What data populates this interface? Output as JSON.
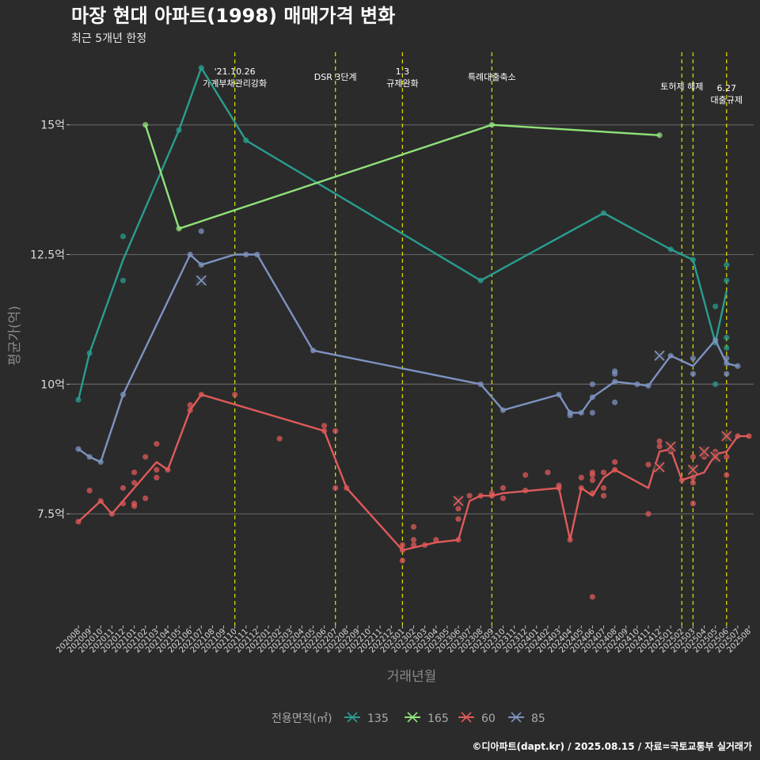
{
  "chart_data": {
    "type": "line",
    "title": "마장 현대 아파트(1998) 매매가격 변화",
    "subtitle": "최근 5개년 한정",
    "xlabel": "거래년월",
    "ylabel": "평균가(억)",
    "caption": "©디아파트(dapt.kr) / 2025.08.15 / 자료=국토교통부 실거래가",
    "legend_title": "전용면적(㎡)",
    "legend_position": "bottom",
    "grid": true,
    "ylim": [
      5.35,
      16.4
    ],
    "yticks": [
      7.5,
      10,
      12.5,
      15
    ],
    "ytick_labels": [
      "7.5억",
      "10억",
      "12.5억",
      "15억"
    ],
    "x_categories": [
      "202008",
      "202009",
      "202010",
      "202011",
      "202012",
      "202101",
      "202102",
      "202103",
      "202104",
      "202105",
      "202106",
      "202107",
      "202108",
      "202109",
      "202110",
      "202111",
      "202112",
      "202201",
      "202202",
      "202203",
      "202204",
      "202205",
      "202206",
      "202207",
      "202208",
      "202209",
      "202210",
      "202211",
      "202212",
      "202301",
      "202302",
      "202303",
      "202304",
      "202305",
      "202306",
      "202307",
      "202308",
      "202309",
      "202310",
      "202311",
      "202312",
      "202401",
      "202402",
      "202403",
      "202404",
      "202405",
      "202406",
      "202407",
      "202408",
      "202409",
      "202410",
      "202411",
      "202412",
      "202501",
      "202502",
      "202503",
      "202504",
      "202505",
      "202506",
      "202507",
      "202508"
    ],
    "events": [
      {
        "x": "202110",
        "lines": [
          "'21.10.26",
          "가계부채관리강화"
        ],
        "level": 0
      },
      {
        "x": "202207",
        "lines": [
          "DSR 3단계"
        ],
        "level": 2
      },
      {
        "x": "202301",
        "lines": [
          "1.3",
          "규제완화"
        ],
        "level": 0
      },
      {
        "x": "202309",
        "lines": [
          "특례대출축소"
        ],
        "level": 2
      },
      {
        "x": "202502",
        "lines": [
          "토허제 해제"
        ],
        "level": 1
      },
      {
        "x": "202503",
        "lines": [],
        "level": 1
      },
      {
        "x": "202506",
        "lines": [
          "6.27",
          "대출규제"
        ],
        "level": 3
      }
    ],
    "series": [
      {
        "name": "135",
        "color": "#2a9d8f",
        "line": [
          [
            "202008",
            9.7
          ],
          [
            "202009",
            10.6
          ],
          [
            "202012",
            12.4
          ],
          [
            "202105",
            14.9
          ],
          [
            "202107",
            16.1
          ],
          [
            "202111",
            14.7
          ],
          [
            "202308",
            12.0
          ],
          [
            "202407",
            13.3
          ],
          [
            "202501",
            12.6
          ],
          [
            "202503",
            12.4
          ],
          [
            "202505",
            10.8
          ],
          [
            "202506",
            11.8
          ]
        ],
        "points": [
          [
            "202008",
            9.7
          ],
          [
            "202009",
            10.6
          ],
          [
            "202012",
            12.85
          ],
          [
            "202012",
            12.0
          ],
          [
            "202105",
            14.9
          ],
          [
            "202107",
            16.1
          ],
          [
            "202111",
            14.7
          ],
          [
            "202308",
            12.0
          ],
          [
            "202407",
            13.3
          ],
          [
            "202501",
            12.6
          ],
          [
            "202503",
            12.4
          ],
          [
            "202505",
            11.5
          ],
          [
            "202505",
            10.0
          ],
          [
            "202505",
            10.8
          ],
          [
            "202506",
            12.3
          ],
          [
            "202506",
            12.0
          ],
          [
            "202506",
            10.9
          ],
          [
            "202506",
            10.7
          ]
        ],
        "cancelled": []
      },
      {
        "name": "165",
        "color": "#90e27a",
        "line": [
          [
            "202102",
            15.0
          ],
          [
            "202105",
            13.0
          ],
          [
            "202309",
            15.0
          ],
          [
            "202412",
            14.8
          ]
        ],
        "points": [
          [
            "202102",
            15.0
          ],
          [
            "202105",
            13.0
          ],
          [
            "202309",
            15.0
          ],
          [
            "202412",
            14.8
          ]
        ],
        "cancelled": []
      },
      {
        "name": "60",
        "color": "#e05a5a",
        "line": [
          [
            "202008",
            7.35
          ],
          [
            "202010",
            7.75
          ],
          [
            "202011",
            7.5
          ],
          [
            "202101",
            8.0
          ],
          [
            "202103",
            8.5
          ],
          [
            "202104",
            8.35
          ],
          [
            "202106",
            9.5
          ],
          [
            "202107",
            9.8
          ],
          [
            "202206",
            9.1
          ],
          [
            "202208",
            8.0
          ],
          [
            "202301",
            6.8
          ],
          [
            "202303",
            6.9
          ],
          [
            "202304",
            6.95
          ],
          [
            "202306",
            7.0
          ],
          [
            "202307",
            7.75
          ],
          [
            "202308",
            7.85
          ],
          [
            "202309",
            7.85
          ],
          [
            "202310",
            7.9
          ],
          [
            "202403",
            8.0
          ],
          [
            "202404",
            7.0
          ],
          [
            "202405",
            8.0
          ],
          [
            "202406",
            7.85
          ],
          [
            "202407",
            8.2
          ],
          [
            "202408",
            8.35
          ],
          [
            "202411",
            8.0
          ],
          [
            "202412",
            8.7
          ],
          [
            "202501",
            8.75
          ],
          [
            "202502",
            8.15
          ],
          [
            "202504",
            8.3
          ],
          [
            "202505",
            8.65
          ],
          [
            "202506",
            8.7
          ],
          [
            "202507",
            9.0
          ],
          [
            "202508",
            9.0
          ]
        ],
        "points": [
          [
            "202008",
            7.35
          ],
          [
            "202009",
            7.95
          ],
          [
            "202010",
            7.75
          ],
          [
            "202011",
            7.5
          ],
          [
            "202012",
            8.0
          ],
          [
            "202012",
            7.7
          ],
          [
            "202101",
            8.3
          ],
          [
            "202101",
            8.1
          ],
          [
            "202101",
            7.7
          ],
          [
            "202101",
            7.65
          ],
          [
            "202102",
            8.6
          ],
          [
            "202102",
            7.8
          ],
          [
            "202103",
            8.35
          ],
          [
            "202103",
            8.2
          ],
          [
            "202103",
            8.85
          ],
          [
            "202104",
            8.35
          ],
          [
            "202106",
            9.6
          ],
          [
            "202106",
            9.5
          ],
          [
            "202107",
            9.8
          ],
          [
            "202110",
            9.8
          ],
          [
            "202202",
            8.95
          ],
          [
            "202206",
            9.2
          ],
          [
            "202206",
            9.1
          ],
          [
            "202207",
            9.1
          ],
          [
            "202207",
            8.0
          ],
          [
            "202208",
            8.0
          ],
          [
            "202301",
            6.6
          ],
          [
            "202301",
            6.8
          ],
          [
            "202301",
            6.9
          ],
          [
            "202302",
            7.25
          ],
          [
            "202302",
            7.0
          ],
          [
            "202302",
            6.9
          ],
          [
            "202303",
            6.9
          ],
          [
            "202304",
            7.0
          ],
          [
            "202306",
            7.0
          ],
          [
            "202306",
            7.4
          ],
          [
            "202306",
            7.6
          ],
          [
            "202307",
            7.85
          ],
          [
            "202308",
            7.85
          ],
          [
            "202309",
            7.85
          ],
          [
            "202309",
            7.9
          ],
          [
            "202310",
            7.8
          ],
          [
            "202310",
            8.0
          ],
          [
            "202312",
            8.25
          ],
          [
            "202312",
            7.95
          ],
          [
            "202402",
            8.3
          ],
          [
            "202403",
            8.0
          ],
          [
            "202403",
            8.05
          ],
          [
            "202404",
            7.0
          ],
          [
            "202405",
            8.2
          ],
          [
            "202405",
            8.0
          ],
          [
            "202406",
            7.9
          ],
          [
            "202406",
            8.25
          ],
          [
            "202406",
            8.3
          ],
          [
            "202406",
            8.15
          ],
          [
            "202406",
            5.9
          ],
          [
            "202407",
            8.0
          ],
          [
            "202407",
            7.85
          ],
          [
            "202407",
            8.3
          ],
          [
            "202408",
            8.35
          ],
          [
            "202408",
            8.5
          ],
          [
            "202411",
            8.45
          ],
          [
            "202411",
            7.5
          ],
          [
            "202412",
            8.9
          ],
          [
            "202412",
            8.8
          ],
          [
            "202501",
            8.7
          ],
          [
            "202501",
            8.75
          ],
          [
            "202502",
            8.15
          ],
          [
            "202503",
            8.6
          ],
          [
            "202503",
            8.2
          ],
          [
            "202503",
            8.1
          ],
          [
            "202503",
            7.7
          ],
          [
            "202504",
            8.6
          ],
          [
            "202505",
            8.6
          ],
          [
            "202505",
            8.7
          ],
          [
            "202506",
            9.0
          ],
          [
            "202506",
            8.25
          ],
          [
            "202506",
            8.6
          ],
          [
            "202507",
            9.0
          ],
          [
            "202508",
            9.0
          ]
        ],
        "cancelled": [
          [
            "202306",
            7.75
          ],
          [
            "202412",
            8.4
          ],
          [
            "202501",
            8.8
          ],
          [
            "202503",
            8.35
          ],
          [
            "202504",
            8.7
          ],
          [
            "202505",
            8.6
          ],
          [
            "202506",
            9.0
          ]
        ]
      },
      {
        "name": "85",
        "color": "#7d93c0",
        "line": [
          [
            "202008",
            8.75
          ],
          [
            "202009",
            8.6
          ],
          [
            "202010",
            8.5
          ],
          [
            "202012",
            9.8
          ],
          [
            "202106",
            12.5
          ],
          [
            "202107",
            12.3
          ],
          [
            "202110",
            12.5
          ],
          [
            "202111",
            12.5
          ],
          [
            "202112",
            12.5
          ],
          [
            "202205",
            10.65
          ],
          [
            "202308",
            10.0
          ],
          [
            "202310",
            9.5
          ],
          [
            "202403",
            9.8
          ],
          [
            "202404",
            9.45
          ],
          [
            "202405",
            9.45
          ],
          [
            "202406",
            9.75
          ],
          [
            "202408",
            10.05
          ],
          [
            "202410",
            10.0
          ],
          [
            "202411",
            9.97
          ],
          [
            "202501",
            10.55
          ],
          [
            "202503",
            10.35
          ],
          [
            "202505",
            10.85
          ],
          [
            "202506",
            10.4
          ],
          [
            "202507",
            10.35
          ]
        ],
        "points": [
          [
            "202008",
            8.75
          ],
          [
            "202009",
            8.6
          ],
          [
            "202010",
            8.5
          ],
          [
            "202012",
            9.8
          ],
          [
            "202106",
            12.5
          ],
          [
            "202107",
            12.95
          ],
          [
            "202107",
            12.3
          ],
          [
            "202111",
            12.5
          ],
          [
            "202112",
            12.5
          ],
          [
            "202205",
            10.65
          ],
          [
            "202308",
            10.0
          ],
          [
            "202310",
            9.5
          ],
          [
            "202403",
            9.8
          ],
          [
            "202404",
            9.45
          ],
          [
            "202404",
            9.4
          ],
          [
            "202405",
            9.45
          ],
          [
            "202406",
            10.0
          ],
          [
            "202406",
            9.45
          ],
          [
            "202406",
            9.75
          ],
          [
            "202408",
            10.25
          ],
          [
            "202408",
            10.2
          ],
          [
            "202408",
            9.65
          ],
          [
            "202408",
            10.05
          ],
          [
            "202410",
            10.0
          ],
          [
            "202411",
            9.97
          ],
          [
            "202501",
            10.55
          ],
          [
            "202503",
            10.5
          ],
          [
            "202503",
            10.2
          ],
          [
            "202505",
            10.85
          ],
          [
            "202506",
            10.5
          ],
          [
            "202506",
            10.4
          ],
          [
            "202506",
            10.2
          ],
          [
            "202507",
            10.35
          ]
        ],
        "cancelled": [
          [
            "202107",
            12.0
          ],
          [
            "202412",
            10.55
          ]
        ]
      }
    ]
  }
}
